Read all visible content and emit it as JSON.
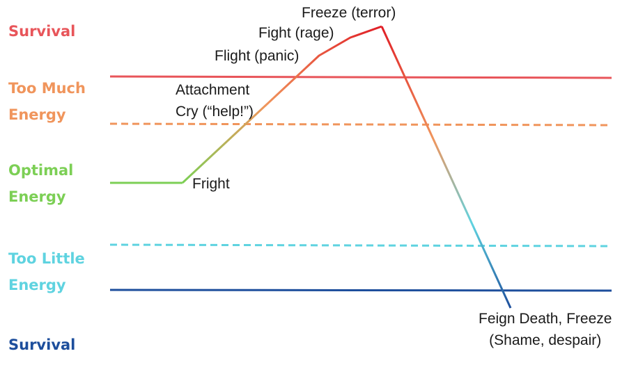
{
  "zones": [
    {
      "id": "survival-top",
      "label": "Survival",
      "color": "#e8555a"
    },
    {
      "id": "too-much",
      "label": "Too Much\nEnergy",
      "color": "#f0955c"
    },
    {
      "id": "optimal",
      "label": "Optimal\nEnergy",
      "color": "#7ccf55"
    },
    {
      "id": "too-little",
      "label": "Too Little\nEnergy",
      "color": "#5fd3e0"
    },
    {
      "id": "survival-bottom",
      "label": "Survival",
      "color": "#1d4e9c"
    }
  ],
  "stages": {
    "freeze_terror": "Freeze (terror)",
    "fight_rage": "Fight (rage)",
    "flight_panic": "Flight (panic)",
    "attachment_cry": "Attachment\nCry (“help!”)",
    "fright": "Fright",
    "feign_death": "Feign Death, Freeze\n(Shame, despair)"
  },
  "colors": {
    "survival_top_line": "#e8555a",
    "too_much_line": "#f0955c",
    "too_little_line": "#5fd3e0",
    "survival_bottom_line": "#1d4e9c",
    "curve_green": "#7ccf55",
    "curve_orange": "#f0955c",
    "curve_red": "#e01e26",
    "curve_cyan": "#5fd3e0",
    "curve_blue": "#1d4e9c"
  }
}
